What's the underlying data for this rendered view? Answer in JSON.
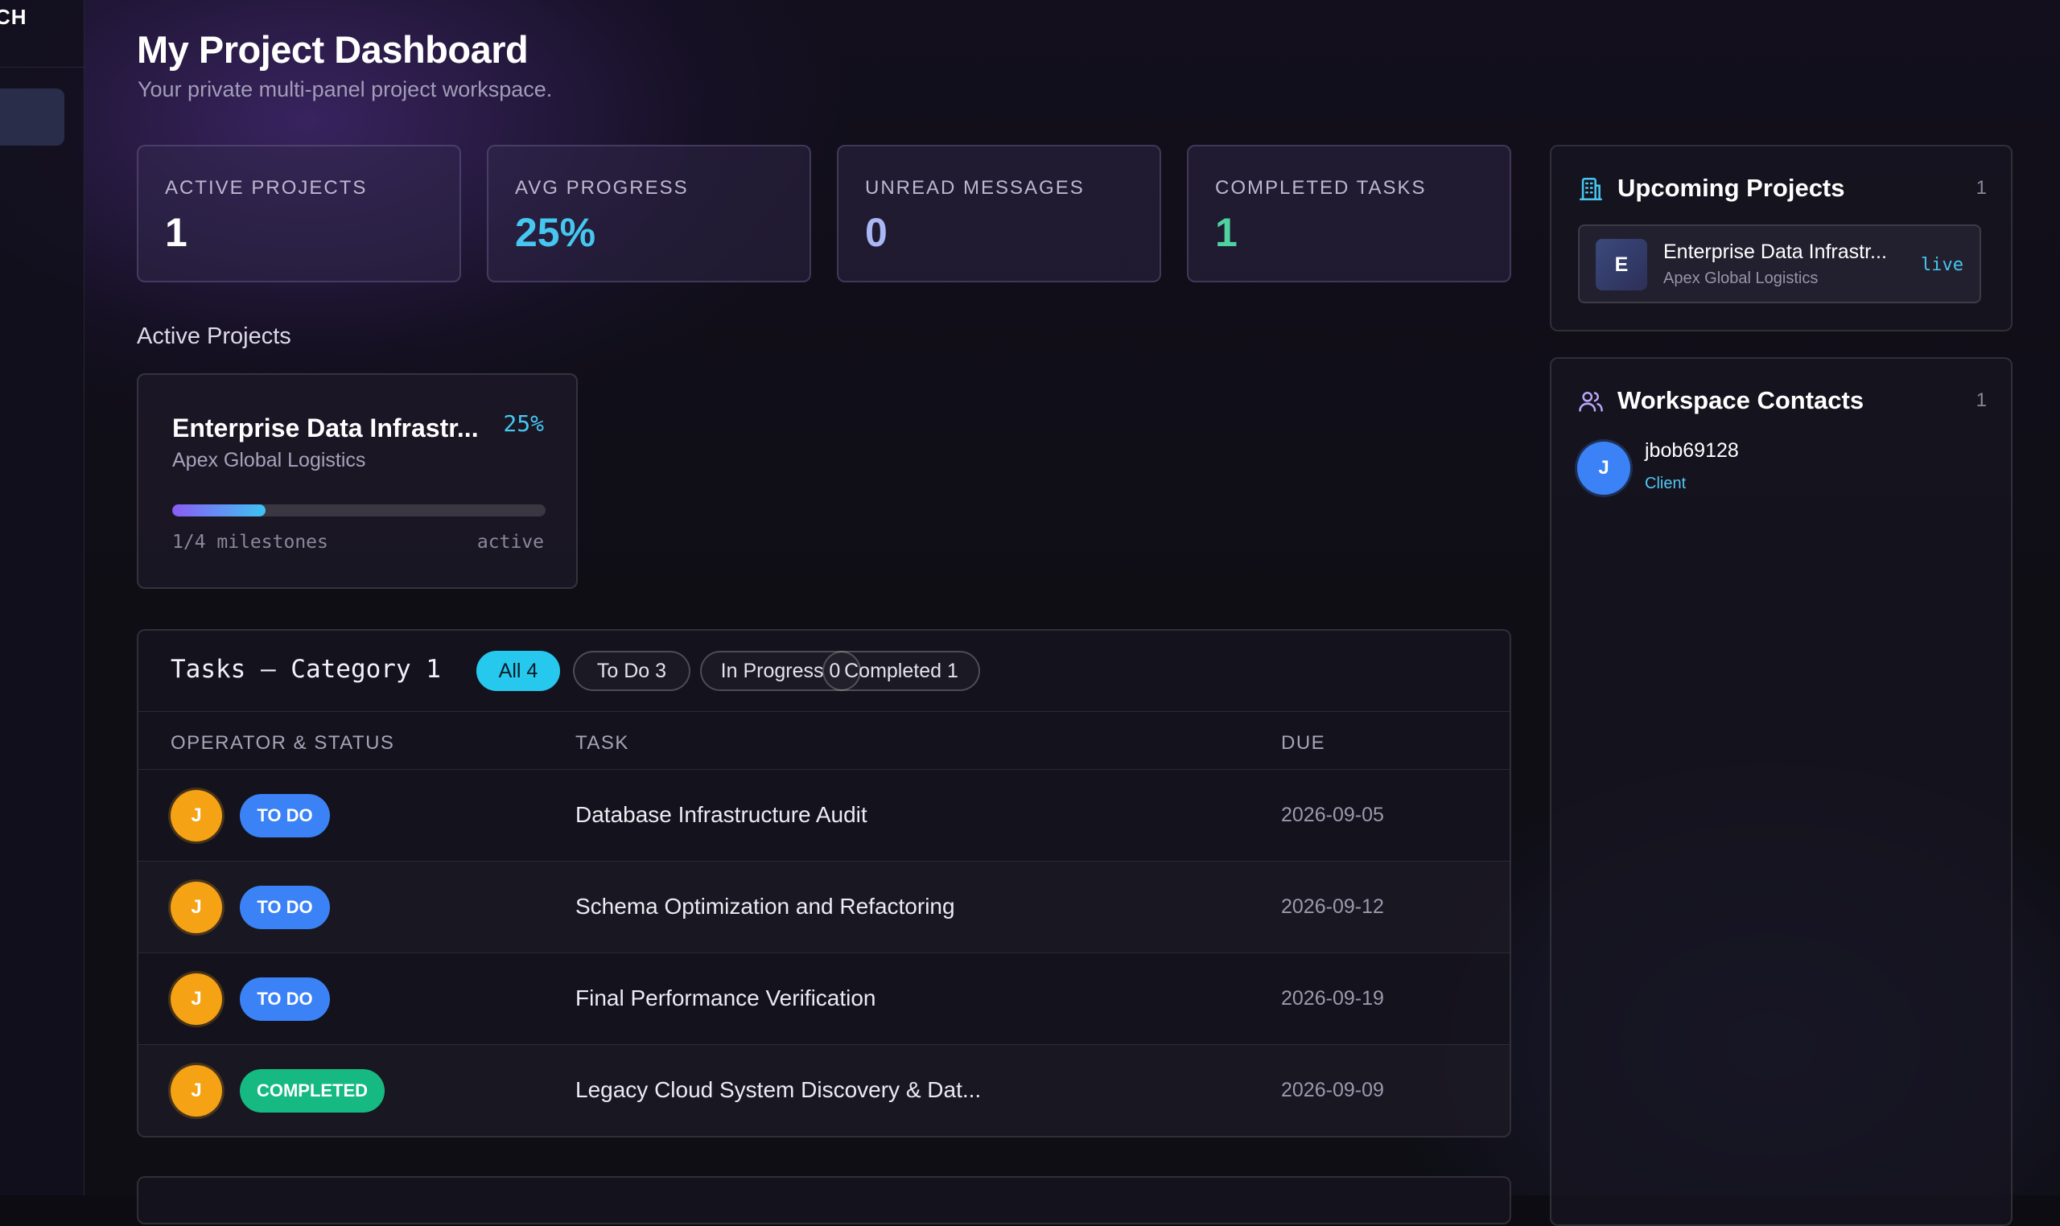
{
  "sidebar": {
    "brand_fragment": "CH"
  },
  "header": {
    "title": "My Project Dashboard",
    "subtitle": "Your private multi-panel project workspace."
  },
  "stats": [
    {
      "label": "ACTIVE PROJECTS",
      "value": "1",
      "color": "#ffffff"
    },
    {
      "label": "AVG PROGRESS",
      "value": "25%",
      "color": "#45c7f0"
    },
    {
      "label": "UNREAD MESSAGES",
      "value": "0",
      "color": "#a9b7f5"
    },
    {
      "label": "COMPLETED TASKS",
      "value": "1",
      "color": "#4ed3a0"
    }
  ],
  "active_projects": {
    "heading": "Active Projects",
    "project": {
      "name": "Enterprise Data Infrastr...",
      "percent_label": "25%",
      "progress": 0.25,
      "client": "Apex Global Logistics",
      "milestones": "1/4 milestones",
      "status": "active"
    }
  },
  "tasks": {
    "title": "Tasks — Category 1",
    "filters": [
      {
        "label": "All 4",
        "active": true
      },
      {
        "label": "To Do 3",
        "active": false
      },
      {
        "label": "In Progress 0",
        "active": false
      },
      {
        "label": "Completed 1",
        "active": false
      }
    ],
    "columns": [
      "OPERATOR & STATUS",
      "TASK",
      "DUE"
    ],
    "rows": [
      {
        "avatar": "J",
        "status": "TO DO",
        "status_type": "todo",
        "task": "Database Infrastructure Audit",
        "due": "2026-09-05"
      },
      {
        "avatar": "J",
        "status": "TO DO",
        "status_type": "todo",
        "task": "Schema Optimization and Refactoring",
        "due": "2026-09-12"
      },
      {
        "avatar": "J",
        "status": "TO DO",
        "status_type": "todo",
        "task": "Final Performance Verification",
        "due": "2026-09-19"
      },
      {
        "avatar": "J",
        "status": "COMPLETED",
        "status_type": "done",
        "task": "Legacy Cloud System Discovery & Dat...",
        "due": "2026-09-09"
      }
    ]
  },
  "upcoming": {
    "title": "Upcoming Projects",
    "count": "1",
    "icon": "building-icon",
    "item": {
      "initial": "E",
      "name": "Enterprise Data Infrastr...",
      "client": "Apex Global Logistics",
      "tag": "live"
    }
  },
  "contacts": {
    "title": "Workspace Contacts",
    "count": "1",
    "icon": "users-icon",
    "item": {
      "initial": "J",
      "name": "jbob69128",
      "role": "Client"
    }
  },
  "colors": {
    "accent": "#26c8ee",
    "todo": "#3b82f6",
    "completed": "#16b981",
    "avatar": "#f5a214"
  }
}
